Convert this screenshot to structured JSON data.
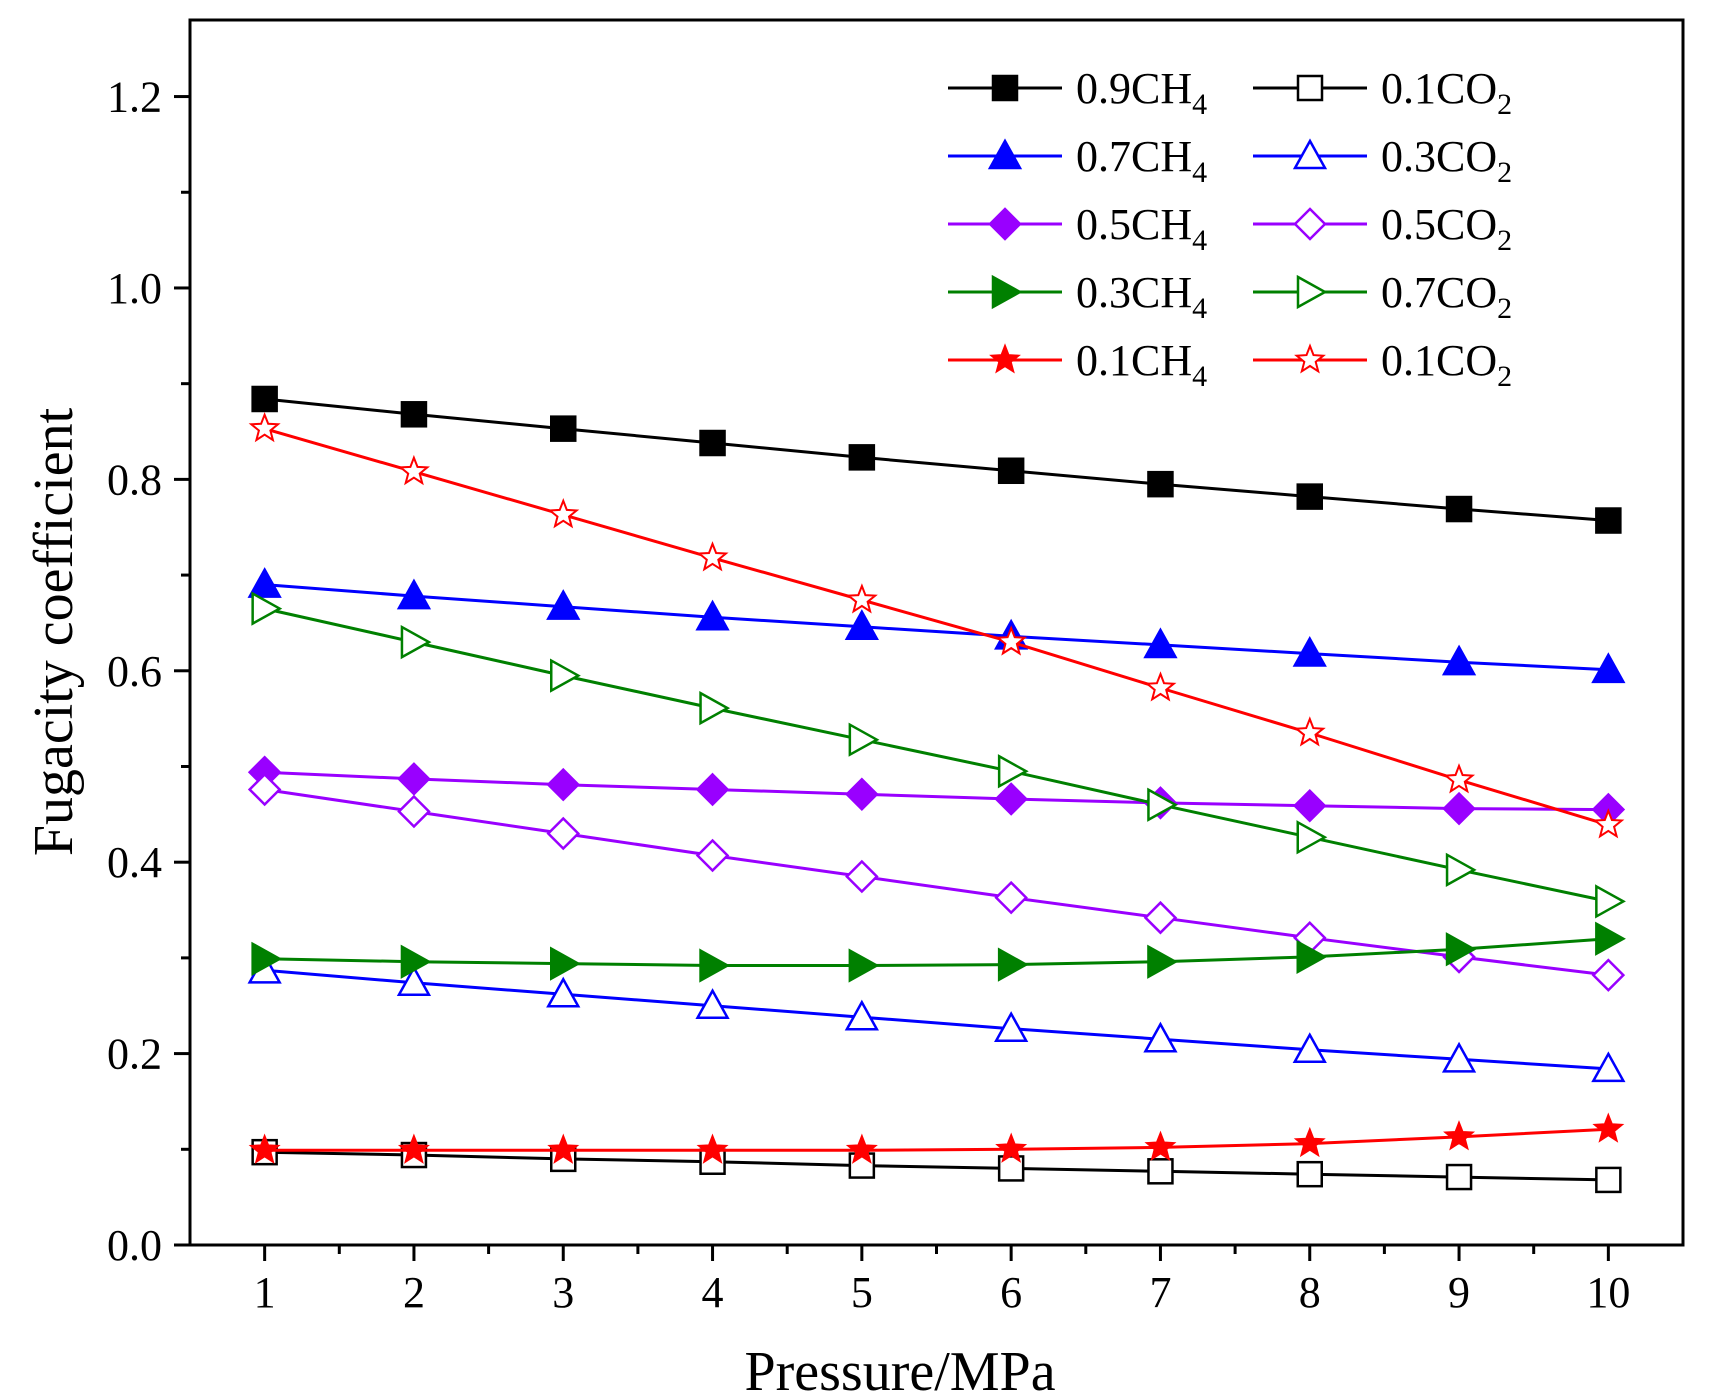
{
  "chart_data": {
    "type": "line",
    "xlabel": "Pressure/MPa",
    "ylabel": "Fugacity coefficient",
    "xlim": [
      0.5,
      10.5
    ],
    "ylim": [
      0.0,
      1.28
    ],
    "x": [
      1,
      2,
      3,
      4,
      5,
      6,
      7,
      8,
      9,
      10
    ],
    "x_ticks": [
      "1",
      "2",
      "3",
      "4",
      "5",
      "6",
      "7",
      "8",
      "9",
      "10"
    ],
    "y_ticks": [
      {
        "value": 0.0,
        "label": "0.0"
      },
      {
        "value": 0.2,
        "label": "0.2"
      },
      {
        "value": 0.4,
        "label": "0.4"
      },
      {
        "value": 0.6,
        "label": "0.6"
      },
      {
        "value": 0.8,
        "label": "0.8"
      },
      {
        "value": 1.0,
        "label": "1.0"
      },
      {
        "value": 1.2,
        "label": "1.2"
      }
    ],
    "legend_position": "top-right",
    "series": [
      {
        "name": "0.9CH4",
        "label_main": "0.9CH",
        "label_sub": "4",
        "color": "#000000",
        "marker": "square",
        "filled": true,
        "values": [
          0.884,
          0.868,
          0.853,
          0.838,
          0.823,
          0.809,
          0.795,
          0.782,
          0.769,
          0.757
        ]
      },
      {
        "name": "0.1CO2",
        "label_main": "0.1CO",
        "label_sub": "2",
        "color": "#000000",
        "marker": "square",
        "filled": false,
        "values": [
          0.097,
          0.094,
          0.09,
          0.087,
          0.083,
          0.08,
          0.077,
          0.074,
          0.071,
          0.068
        ]
      },
      {
        "name": "0.7CH4",
        "label_main": "0.7CH",
        "label_sub": "4",
        "color": "#0000ff",
        "marker": "triangle-up",
        "filled": true,
        "values": [
          0.69,
          0.678,
          0.667,
          0.656,
          0.646,
          0.636,
          0.627,
          0.618,
          0.609,
          0.601
        ]
      },
      {
        "name": "0.3CO2",
        "label_main": "0.3CO",
        "label_sub": "2",
        "color": "#0000ff",
        "marker": "triangle-up",
        "filled": false,
        "values": [
          0.287,
          0.274,
          0.262,
          0.25,
          0.238,
          0.226,
          0.215,
          0.204,
          0.194,
          0.184
        ]
      },
      {
        "name": "0.5CH4",
        "label_main": "0.5CH",
        "label_sub": "4",
        "color": "#9900ff",
        "marker": "diamond",
        "filled": true,
        "values": [
          0.494,
          0.487,
          0.481,
          0.476,
          0.471,
          0.466,
          0.462,
          0.459,
          0.456,
          0.455
        ]
      },
      {
        "name": "0.5CO2",
        "label_main": "0.5CO",
        "label_sub": "2",
        "color": "#9900ff",
        "marker": "diamond",
        "filled": false,
        "values": [
          0.476,
          0.453,
          0.43,
          0.407,
          0.385,
          0.363,
          0.342,
          0.321,
          0.301,
          0.282
        ]
      },
      {
        "name": "0.3CH4",
        "label_main": "0.3CH",
        "label_sub": "4",
        "color": "#008000",
        "marker": "triangle-right",
        "filled": true,
        "values": [
          0.299,
          0.296,
          0.294,
          0.292,
          0.292,
          0.293,
          0.296,
          0.301,
          0.309,
          0.32
        ]
      },
      {
        "name": "0.7CO2",
        "label_main": "0.7CO",
        "label_sub": "2",
        "color": "#008000",
        "marker": "triangle-right",
        "filled": false,
        "values": [
          0.665,
          0.63,
          0.595,
          0.561,
          0.528,
          0.495,
          0.46,
          0.426,
          0.392,
          0.359
        ]
      },
      {
        "name": "0.1CH4",
        "label_main": "0.1CH",
        "label_sub": "4",
        "color": "#ff0000",
        "marker": "star",
        "filled": true,
        "values": [
          0.099,
          0.099,
          0.099,
          0.099,
          0.099,
          0.1,
          0.102,
          0.106,
          0.113,
          0.121
        ]
      },
      {
        "name": "0.1CO2",
        "label_main": "0.1CO",
        "label_sub": "2",
        "color": "#ff0000",
        "marker": "star",
        "filled": false,
        "values": [
          0.853,
          0.808,
          0.763,
          0.718,
          0.674,
          0.63,
          0.582,
          0.535,
          0.486,
          0.439
        ]
      }
    ]
  }
}
